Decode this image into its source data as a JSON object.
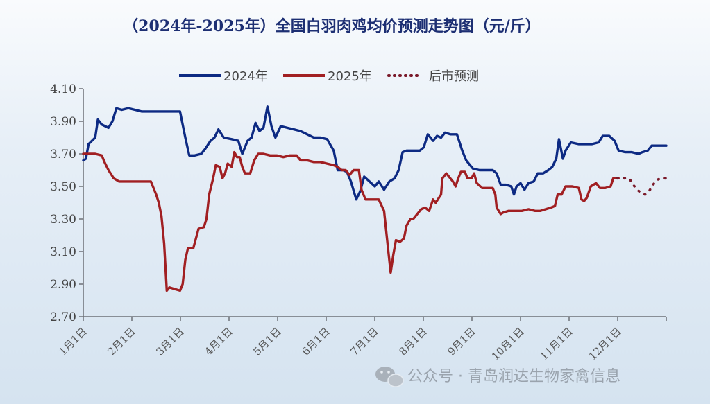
{
  "chart_data": {
    "type": "line",
    "title": "（2024年-2025年）全国白羽肉鸡均价预测走势图（元/斤）",
    "xlabel": "",
    "ylabel": "",
    "ylim": [
      2.7,
      4.1
    ],
    "yticks": [
      "4.10",
      "3.90",
      "3.70",
      "3.50",
      "3.30",
      "3.10",
      "2.90",
      "2.70"
    ],
    "xticks": [
      "1月1日",
      "2月1日",
      "3月1日",
      "4月1日",
      "5月1日",
      "6月1日",
      "7月1日",
      "8月1日",
      "9月1日",
      "10月1日",
      "11月1日",
      "12月1日"
    ],
    "grid": false,
    "legend_position": "top",
    "series": [
      {
        "name": "2024年",
        "color": "#0d2a83",
        "style": "solid",
        "points": [
          [
            1,
            3.66
          ],
          [
            3,
            3.67
          ],
          [
            5,
            3.76
          ],
          [
            10,
            3.8
          ],
          [
            12,
            3.91
          ],
          [
            15,
            3.88
          ],
          [
            20,
            3.86
          ],
          [
            23,
            3.9
          ],
          [
            26,
            3.98
          ],
          [
            30,
            3.97
          ],
          [
            35,
            3.98
          ],
          [
            40,
            3.97
          ],
          [
            45,
            3.96
          ],
          [
            50,
            3.96
          ],
          [
            55,
            3.96
          ],
          [
            60,
            3.96
          ],
          [
            65,
            3.96
          ],
          [
            70,
            3.96
          ],
          [
            74,
            3.96
          ],
          [
            78,
            3.8
          ],
          [
            81,
            3.69
          ],
          [
            85,
            3.69
          ],
          [
            90,
            3.7
          ],
          [
            93,
            3.73
          ],
          [
            97,
            3.78
          ],
          [
            100,
            3.8
          ],
          [
            103,
            3.85
          ],
          [
            107,
            3.8
          ],
          [
            113,
            3.79
          ],
          [
            118,
            3.78
          ],
          [
            121,
            3.7
          ],
          [
            125,
            3.78
          ],
          [
            128,
            3.8
          ],
          [
            131,
            3.89
          ],
          [
            134,
            3.84
          ],
          [
            137,
            3.86
          ],
          [
            140,
            3.99
          ],
          [
            143,
            3.87
          ],
          [
            146,
            3.8
          ],
          [
            150,
            3.87
          ],
          [
            155,
            3.86
          ],
          [
            160,
            3.85
          ],
          [
            165,
            3.84
          ],
          [
            170,
            3.82
          ],
          [
            175,
            3.8
          ],
          [
            180,
            3.8
          ],
          [
            185,
            3.79
          ],
          [
            190,
            3.72
          ],
          [
            193,
            3.6
          ],
          [
            197,
            3.6
          ],
          [
            200,
            3.59
          ],
          [
            203,
            3.53
          ],
          [
            207,
            3.42
          ],
          [
            210,
            3.47
          ],
          [
            213,
            3.56
          ],
          [
            217,
            3.53
          ],
          [
            221,
            3.5
          ],
          [
            224,
            3.53
          ],
          [
            228,
            3.48
          ],
          [
            232,
            3.53
          ],
          [
            236,
            3.55
          ],
          [
            239,
            3.6
          ],
          [
            242,
            3.71
          ],
          [
            245,
            3.72
          ],
          [
            250,
            3.72
          ],
          [
            255,
            3.72
          ],
          [
            258,
            3.74
          ],
          [
            261,
            3.82
          ],
          [
            265,
            3.78
          ],
          [
            268,
            3.81
          ],
          [
            271,
            3.8
          ],
          [
            274,
            3.83
          ],
          [
            278,
            3.82
          ],
          [
            283,
            3.82
          ],
          [
            287,
            3.72
          ],
          [
            290,
            3.66
          ],
          [
            295,
            3.61
          ],
          [
            300,
            3.6
          ],
          [
            305,
            3.6
          ],
          [
            310,
            3.6
          ],
          [
            313,
            3.58
          ],
          [
            316,
            3.51
          ],
          [
            320,
            3.51
          ],
          [
            324,
            3.5
          ],
          [
            326,
            3.45
          ],
          [
            328,
            3.5
          ],
          [
            331,
            3.52
          ],
          [
            334,
            3.48
          ],
          [
            337,
            3.52
          ],
          [
            341,
            3.53
          ],
          [
            344,
            3.58
          ],
          [
            348,
            3.58
          ],
          [
            352,
            3.6
          ],
          [
            355,
            3.62
          ],
          [
            358,
            3.67
          ],
          [
            360,
            3.79
          ],
          [
            363,
            3.67
          ],
          [
            365,
            3.72
          ],
          [
            369,
            3.77
          ],
          [
            375,
            3.76
          ],
          [
            380,
            3.76
          ],
          [
            385,
            3.76
          ],
          [
            390,
            3.77
          ],
          [
            393,
            3.81
          ],
          [
            398,
            3.81
          ],
          [
            402,
            3.78
          ],
          [
            405,
            3.72
          ],
          [
            410,
            3.71
          ],
          [
            415,
            3.71
          ],
          [
            420,
            3.7
          ],
          [
            423,
            3.71
          ],
          [
            427,
            3.72
          ],
          [
            430,
            3.75
          ],
          [
            436,
            3.75
          ],
          [
            441,
            3.75
          ]
        ]
      },
      {
        "name": "2025年",
        "color": "#a11f22",
        "style": "solid",
        "points": [
          [
            1,
            3.7
          ],
          [
            5,
            3.7
          ],
          [
            10,
            3.7
          ],
          [
            15,
            3.69
          ],
          [
            17,
            3.65
          ],
          [
            20,
            3.6
          ],
          [
            24,
            3.55
          ],
          [
            28,
            3.53
          ],
          [
            33,
            3.53
          ],
          [
            38,
            3.53
          ],
          [
            43,
            3.53
          ],
          [
            48,
            3.53
          ],
          [
            52,
            3.53
          ],
          [
            56,
            3.45
          ],
          [
            58,
            3.4
          ],
          [
            60,
            3.32
          ],
          [
            62,
            3.15
          ],
          [
            64,
            2.86
          ],
          [
            66,
            2.88
          ],
          [
            70,
            2.87
          ],
          [
            74,
            2.86
          ],
          [
            76,
            2.9
          ],
          [
            78,
            3.05
          ],
          [
            80,
            3.12
          ],
          [
            84,
            3.12
          ],
          [
            86,
            3.18
          ],
          [
            88,
            3.24
          ],
          [
            92,
            3.25
          ],
          [
            94,
            3.3
          ],
          [
            96,
            3.45
          ],
          [
            99,
            3.55
          ],
          [
            101,
            3.63
          ],
          [
            104,
            3.62
          ],
          [
            106,
            3.55
          ],
          [
            108,
            3.58
          ],
          [
            110,
            3.64
          ],
          [
            113,
            3.62
          ],
          [
            115,
            3.71
          ],
          [
            117,
            3.68
          ],
          [
            119,
            3.68
          ],
          [
            121,
            3.62
          ],
          [
            123,
            3.58
          ],
          [
            127,
            3.58
          ],
          [
            130,
            3.66
          ],
          [
            133,
            3.7
          ],
          [
            137,
            3.7
          ],
          [
            142,
            3.69
          ],
          [
            147,
            3.69
          ],
          [
            152,
            3.68
          ],
          [
            157,
            3.69
          ],
          [
            162,
            3.69
          ],
          [
            165,
            3.66
          ],
          [
            170,
            3.66
          ],
          [
            175,
            3.65
          ],
          [
            180,
            3.65
          ],
          [
            185,
            3.64
          ],
          [
            190,
            3.63
          ],
          [
            193,
            3.62
          ],
          [
            196,
            3.6
          ],
          [
            199,
            3.6
          ],
          [
            202,
            3.57
          ],
          [
            205,
            3.6
          ],
          [
            209,
            3.6
          ],
          [
            211,
            3.48
          ],
          [
            214,
            3.42
          ],
          [
            219,
            3.42
          ],
          [
            224,
            3.42
          ],
          [
            228,
            3.35
          ],
          [
            231,
            3.12
          ],
          [
            233,
            2.97
          ],
          [
            235,
            3.08
          ],
          [
            237,
            3.17
          ],
          [
            240,
            3.16
          ],
          [
            243,
            3.18
          ],
          [
            245,
            3.26
          ],
          [
            248,
            3.3
          ],
          [
            250,
            3.3
          ],
          [
            253,
            3.33
          ],
          [
            256,
            3.36
          ],
          [
            259,
            3.37
          ],
          [
            262,
            3.35
          ],
          [
            265,
            3.42
          ],
          [
            267,
            3.4
          ],
          [
            271,
            3.45
          ],
          [
            272,
            3.55
          ],
          [
            275,
            3.58
          ],
          [
            278,
            3.55
          ],
          [
            280,
            3.53
          ],
          [
            282,
            3.5
          ],
          [
            284,
            3.55
          ],
          [
            286,
            3.59
          ],
          [
            289,
            3.59
          ],
          [
            291,
            3.55
          ],
          [
            294,
            3.55
          ],
          [
            296,
            3.58
          ],
          [
            298,
            3.52
          ],
          [
            302,
            3.49
          ],
          [
            306,
            3.49
          ],
          [
            310,
            3.49
          ],
          [
            312,
            3.45
          ],
          [
            313,
            3.37
          ],
          [
            316,
            3.33
          ],
          [
            318,
            3.34
          ],
          [
            322,
            3.35
          ],
          [
            327,
            3.35
          ],
          [
            332,
            3.35
          ],
          [
            337,
            3.36
          ],
          [
            342,
            3.35
          ],
          [
            346,
            3.35
          ],
          [
            350,
            3.36
          ],
          [
            354,
            3.37
          ],
          [
            357,
            3.38
          ],
          [
            359,
            3.45
          ],
          [
            362,
            3.45
          ],
          [
            365,
            3.5
          ],
          [
            370,
            3.5
          ],
          [
            375,
            3.49
          ],
          [
            377,
            3.42
          ],
          [
            379,
            3.41
          ],
          [
            381,
            3.43
          ],
          [
            384,
            3.5
          ],
          [
            388,
            3.52
          ],
          [
            391,
            3.49
          ],
          [
            395,
            3.49
          ],
          [
            399,
            3.5
          ],
          [
            401,
            3.55
          ],
          [
            405,
            3.55
          ]
        ]
      },
      {
        "name": "后市预测",
        "color": "#7a1a2a",
        "style": "dotted",
        "points": [
          [
            404,
            3.55
          ],
          [
            408,
            3.55
          ],
          [
            413,
            3.55
          ],
          [
            416,
            3.51
          ],
          [
            419,
            3.48
          ],
          [
            422,
            3.46
          ],
          [
            425,
            3.45
          ],
          [
            428,
            3.47
          ],
          [
            431,
            3.51
          ],
          [
            434,
            3.54
          ],
          [
            437,
            3.55
          ],
          [
            441,
            3.55
          ]
        ]
      }
    ]
  },
  "watermark": "公众号 · 青岛润达生物家禽信息"
}
